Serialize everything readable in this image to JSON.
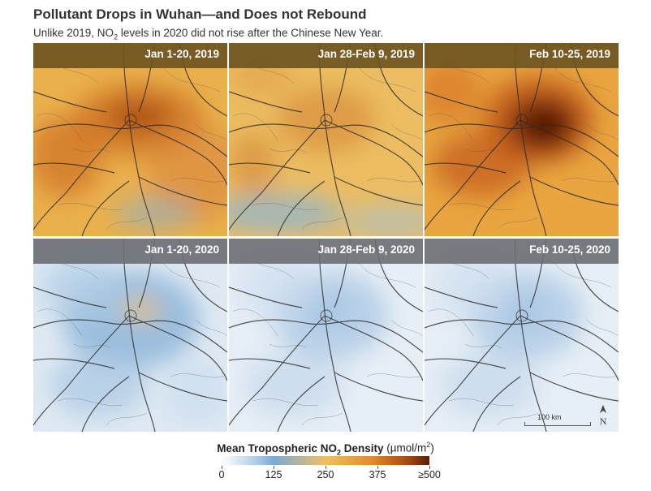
{
  "title": "Pollutant Drops in Wuhan—and Does not Rebound",
  "subtitle_prefix": "Unlike 2019, NO",
  "subtitle_sub": "2",
  "subtitle_suffix": " levels in 2020 did not rise after the Chinese New Year.",
  "panels": [
    {
      "label": "Jan 1-20, 2019",
      "year": "2019",
      "intensity": "high"
    },
    {
      "label": "Jan 28-Feb 9, 2019",
      "year": "2019",
      "intensity": "medium"
    },
    {
      "label": "Feb 10-25, 2019",
      "year": "2019",
      "intensity": "very-high"
    },
    {
      "label": "Jan 1-20, 2020",
      "year": "2020",
      "intensity": "low"
    },
    {
      "label": "Jan 28-Feb 9, 2020",
      "year": "2020",
      "intensity": "very-low"
    },
    {
      "label": "Feb 10-25, 2020",
      "year": "2020",
      "intensity": "very-low"
    }
  ],
  "legend": {
    "title_bold_prefix": "Mean Tropospheric NO",
    "title_bold_sub": "2",
    "title_bold_suffix": " Density",
    "unit_prefix": " (µmol/m",
    "unit_sup": "2",
    "unit_suffix": ")",
    "ticks": [
      "0",
      "125",
      "250",
      "375",
      "≥500"
    ],
    "colors": [
      "#ffffff",
      "#7aaad6",
      "#f0c060",
      "#e58a2c",
      "#5a1d06"
    ]
  },
  "scale": {
    "label": "100 km"
  },
  "north_label": "N",
  "colors": {
    "bar_2019": "#6b5320",
    "bar_2020": "#6a6e73",
    "roads": "#2b2b2b"
  }
}
